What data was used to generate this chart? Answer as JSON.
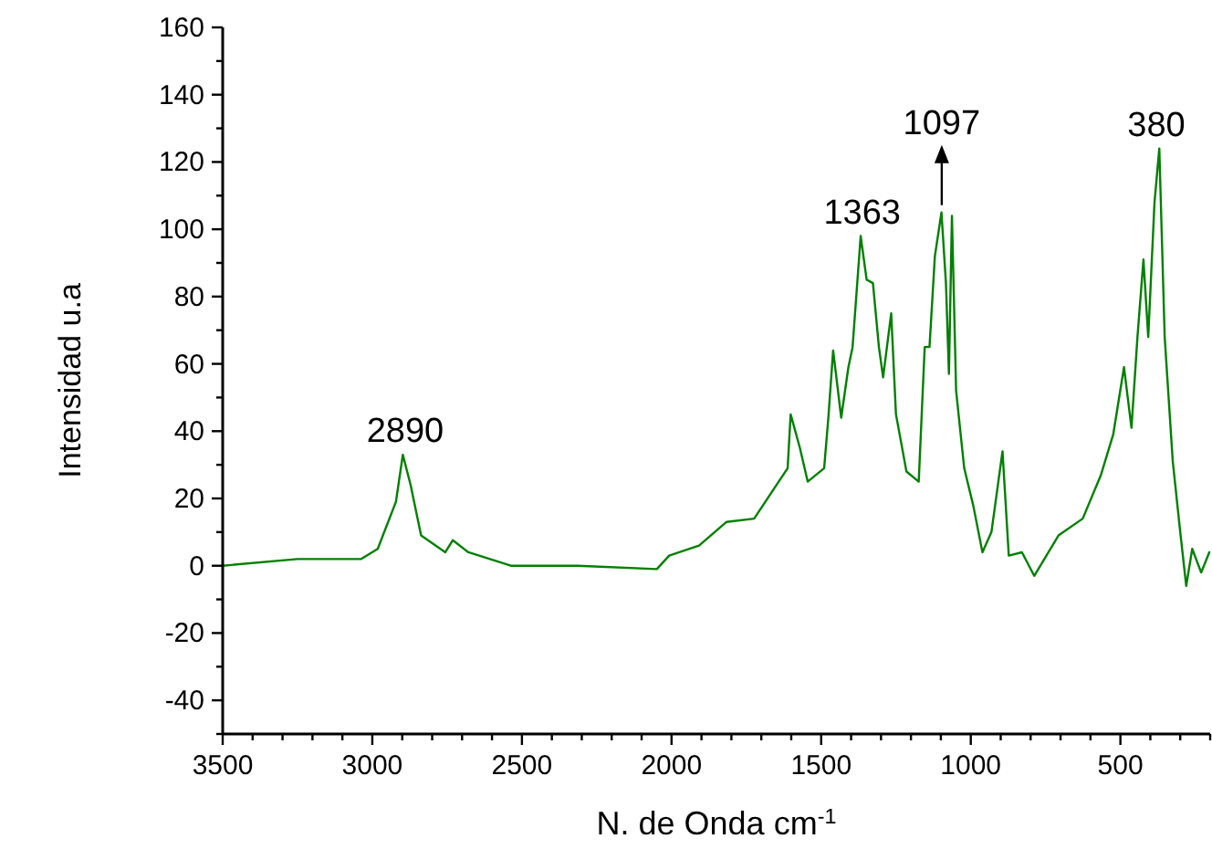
{
  "chart_data": {
    "type": "line",
    "xlabel": "N. de Onda cm$^{-1}$",
    "ylabel": "Intensidad u.a",
    "x": [
      3500,
      3250,
      3037,
      2982,
      2921,
      2898,
      2872,
      2837,
      2756,
      2731,
      2679,
      2537,
      2313,
      2049,
      2008,
      1908,
      1817,
      1724,
      1642,
      1612,
      1602,
      1571,
      1545,
      1490,
      1476,
      1460,
      1433,
      1409,
      1395,
      1368,
      1348,
      1327,
      1307,
      1293,
      1266,
      1250,
      1215,
      1174,
      1154,
      1138,
      1120,
      1098,
      1083,
      1073,
      1063,
      1049,
      1022,
      992,
      961,
      931,
      894,
      873,
      829,
      788,
      707,
      626,
      565,
      524,
      488,
      463,
      443,
      423,
      407,
      386,
      370,
      352,
      325,
      300,
      280,
      260,
      230,
      203
    ],
    "series": [
      {
        "color": "#008000",
        "values": [
          0,
          2,
          2,
          5,
          19,
          33,
          24,
          9,
          4,
          7.6,
          4,
          0,
          0,
          -1,
          3,
          6,
          13,
          14,
          25,
          29,
          45,
          35,
          25,
          29,
          44,
          64,
          44,
          59,
          65,
          98,
          85,
          84,
          65,
          56,
          75,
          45,
          28,
          25,
          65,
          65,
          92,
          105,
          84,
          57,
          104,
          52,
          29,
          18,
          4,
          10,
          34,
          3,
          4,
          -3,
          9,
          14,
          27,
          39,
          59,
          41,
          68,
          91,
          68,
          108,
          124,
          68,
          31,
          10,
          -6,
          5,
          -2,
          4
        ]
      }
    ],
    "xlim": [
      3500,
      200
    ],
    "ylim": [
      -50,
      160
    ],
    "xticks": [
      3500,
      {
        "value": 3400,
        "label": null
      },
      {
        "value": 3300,
        "label": null
      },
      {
        "value": 3200,
        "label": null
      },
      {
        "value": 3100,
        "label": null
      },
      3000,
      {
        "value": 2900,
        "label": null
      },
      {
        "value": 2800,
        "label": null
      },
      {
        "value": 2700,
        "label": null
      },
      {
        "value": 2600,
        "label": null
      },
      2500,
      {
        "value": 2400,
        "label": null
      },
      {
        "value": 2300,
        "label": null
      },
      {
        "value": 2200,
        "label": null
      },
      {
        "value": 2100,
        "label": null
      },
      2000,
      {
        "value": 1900,
        "label": null
      },
      {
        "value": 1800,
        "label": null
      },
      {
        "value": 1700,
        "label": null
      },
      {
        "value": 1600,
        "label": null
      },
      1500,
      {
        "value": 1400,
        "label": null
      },
      {
        "value": 1300,
        "label": null
      },
      {
        "value": 1200,
        "label": null
      },
      {
        "value": 1100,
        "label": null
      },
      1000,
      {
        "value": 900,
        "label": null
      },
      {
        "value": 800,
        "label": null
      },
      {
        "value": 700,
        "label": null
      },
      {
        "value": 600,
        "label": null
      },
      500,
      {
        "value": 400,
        "label": null
      },
      {
        "value": 300,
        "label": null
      },
      {
        "value": 200,
        "label": null
      }
    ],
    "yticks": [
      {
        "value": -50,
        "label": null
      },
      -40,
      {
        "value": -30,
        "label": null
      },
      -20,
      {
        "value": -10,
        "label": null
      },
      0,
      {
        "value": 10,
        "label": null
      },
      20,
      {
        "value": 30,
        "label": null
      },
      40,
      {
        "value": 50,
        "label": null
      },
      60,
      {
        "value": 70,
        "label": null
      },
      80,
      {
        "value": 90,
        "label": null
      },
      100,
      {
        "value": 110,
        "label": null
      },
      120,
      {
        "value": 130,
        "label": null
      },
      140,
      {
        "value": 150,
        "label": null
      },
      160
    ],
    "annotations": [
      {
        "text": "2890",
        "x": 2890,
        "y": 33
      },
      {
        "text": "1363",
        "x": 1363,
        "y": 98
      },
      {
        "text": "1097",
        "x": 1097,
        "y": 105
      },
      {
        "text": "380",
        "x": 380,
        "y": 124
      }
    ],
    "grid": false,
    "marker": "none",
    "line_style": "solid"
  }
}
